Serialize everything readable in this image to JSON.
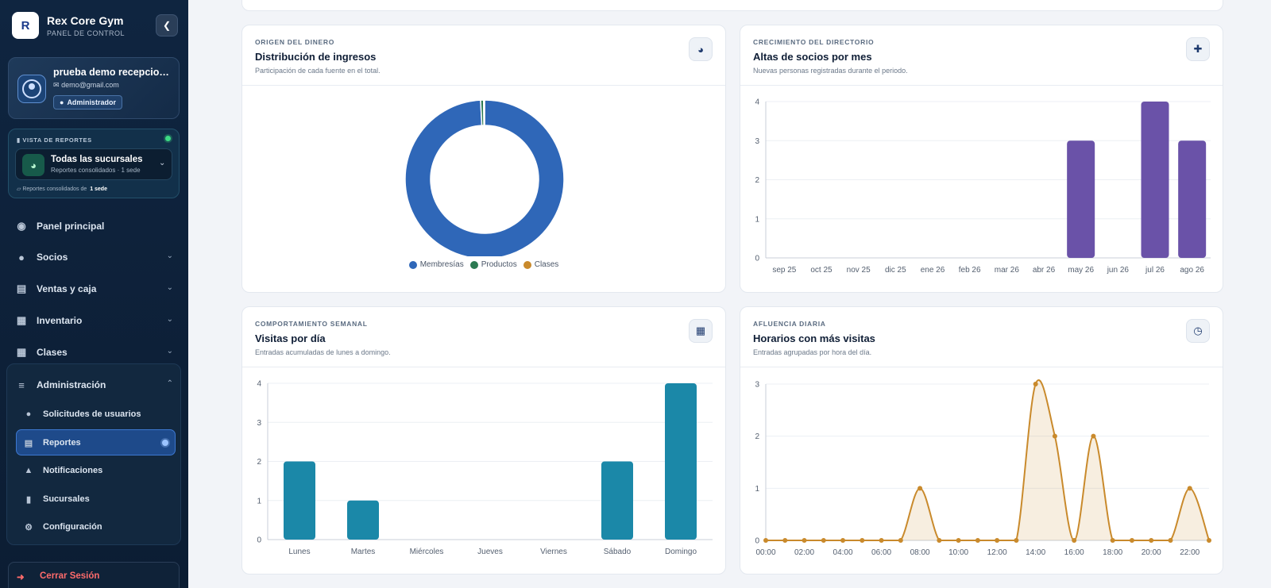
{
  "app": {
    "name": "Rex Core Gym",
    "subtitle": "PANEL DE CONTROL"
  },
  "user": {
    "name": "prueba demo recepcion...",
    "email": "demo@gmail.com",
    "role": "Administrador"
  },
  "reports_view": {
    "title": "VISTA DE REPORTES",
    "selected": "Todas las sucursales",
    "selected_sub": "Reportes consolidados · 1 sede",
    "footer_prefix": "Reportes consolidados de",
    "footer_value": "1 sede"
  },
  "nav": {
    "items": [
      {
        "label": "Panel principal",
        "icon": "dashboard-icon"
      },
      {
        "label": "Socios",
        "icon": "users-icon"
      },
      {
        "label": "Ventas y caja",
        "icon": "cash-register-icon"
      },
      {
        "label": "Inventario",
        "icon": "boxes-icon"
      },
      {
        "label": "Clases",
        "icon": "calendar-icon"
      },
      {
        "label": "Administración",
        "icon": "sliders-icon"
      }
    ],
    "admin_sub": [
      {
        "label": "Solicitudes de usuarios",
        "icon": "user-clock-icon"
      },
      {
        "label": "Reportes",
        "icon": "chart-icon"
      },
      {
        "label": "Notificaciones",
        "icon": "bell-icon"
      },
      {
        "label": "Sucursales",
        "icon": "building-icon"
      },
      {
        "label": "Configuración",
        "icon": "gear-icon"
      }
    ],
    "logout": "Cerrar Sesión"
  },
  "colors": {
    "donut": "#2f67b8",
    "growth": "#6a52a8",
    "weekly": "#1b88a8",
    "hourly": "#c98a2c",
    "productos": "#2c7a52"
  },
  "cards": {
    "income": {
      "eyebrow": "ORIGEN DEL DINERO",
      "title": "Distribución de ingresos",
      "subtitle": "Participación de cada fuente en el total.",
      "icon": "pie-chart-icon"
    },
    "growth": {
      "eyebrow": "CRECIMIENTO DEL DIRECTORIO",
      "title": "Altas de socios por mes",
      "subtitle": "Nuevas personas registradas durante el periodo.",
      "icon": "user-plus-icon"
    },
    "weekly": {
      "eyebrow": "COMPORTAMIENTO SEMANAL",
      "title": "Visitas por día",
      "subtitle": "Entradas acumuladas de lunes a domingo.",
      "icon": "calendar-icon"
    },
    "hourly": {
      "eyebrow": "AFLUENCIA DIARIA",
      "title": "Horarios con más visitas",
      "subtitle": "Entradas agrupadas por hora del día.",
      "icon": "clock-icon"
    }
  },
  "chart_data": [
    {
      "id": "income",
      "type": "pie",
      "categories": [
        "Membresías",
        "Productos",
        "Clases"
      ],
      "values": [
        99.2,
        0.6,
        0.2
      ],
      "colors": [
        "#2f67b8",
        "#2c7a52",
        "#c98a2c"
      ],
      "legend": "bottom"
    },
    {
      "id": "growth",
      "type": "bar",
      "categories": [
        "sep 25",
        "oct 25",
        "nov 25",
        "dic 25",
        "ene 26",
        "feb 26",
        "mar 26",
        "abr 26",
        "may 26",
        "jun 26",
        "jul 26",
        "ago 26"
      ],
      "values": [
        0,
        0,
        0,
        0,
        0,
        0,
        0,
        0,
        3,
        0,
        4,
        3
      ],
      "ylim": [
        0,
        4
      ],
      "yticks": [
        0,
        1,
        2,
        3,
        4
      ],
      "grid": true
    },
    {
      "id": "weekly",
      "type": "bar",
      "categories": [
        "Lunes",
        "Martes",
        "Miércoles",
        "Jueves",
        "Viernes",
        "Sábado",
        "Domingo"
      ],
      "values": [
        2,
        1,
        0,
        0,
        0,
        2,
        4
      ],
      "ylim": [
        0,
        4
      ],
      "yticks": [
        0,
        1,
        2,
        3,
        4
      ],
      "grid": true
    },
    {
      "id": "hourly",
      "type": "area",
      "x": [
        "00:00",
        "01:00",
        "02:00",
        "03:00",
        "04:00",
        "05:00",
        "06:00",
        "07:00",
        "08:00",
        "09:00",
        "10:00",
        "11:00",
        "12:00",
        "13:00",
        "14:00",
        "15:00",
        "16:00",
        "17:00",
        "18:00",
        "19:00",
        "20:00",
        "21:00",
        "22:00",
        "23:00"
      ],
      "xtick_labels": [
        "00:00",
        "02:00",
        "04:00",
        "06:00",
        "08:00",
        "10:00",
        "12:00",
        "14:00",
        "16:00",
        "18:00",
        "20:00",
        "22:00"
      ],
      "values": [
        0,
        0,
        0,
        0,
        0,
        0,
        0,
        0,
        1,
        0,
        0,
        0,
        0,
        0,
        3,
        2,
        0,
        2,
        0,
        0,
        0,
        0,
        1,
        0
      ],
      "ylim": [
        0,
        3
      ],
      "yticks": [
        0,
        1,
        2,
        3
      ],
      "grid": true
    }
  ]
}
